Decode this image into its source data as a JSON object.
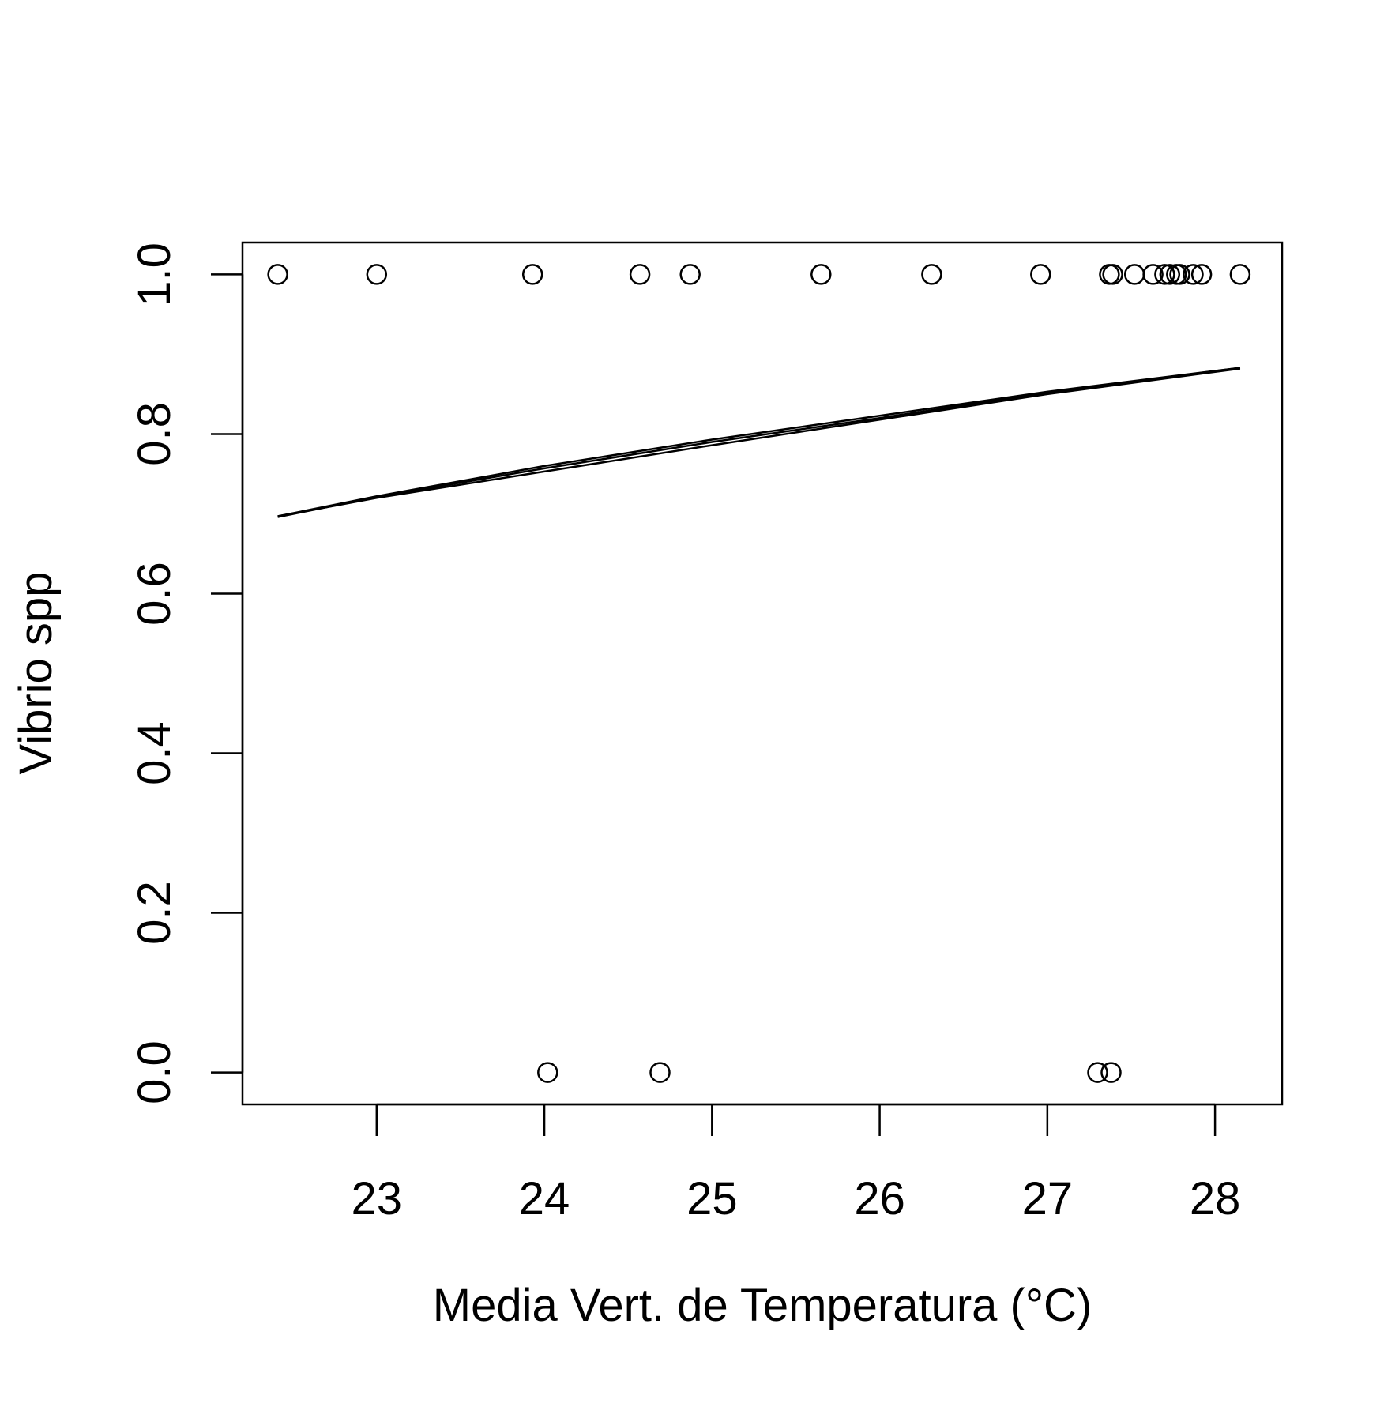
{
  "chart_data": {
    "type": "scatter",
    "title": "",
    "xlabel": "Media Vert. de Temperatura (°C)",
    "ylabel": "Vibrio spp",
    "xlim": [
      22.2,
      28.4
    ],
    "ylim": [
      -0.04,
      1.04
    ],
    "x_ticks": [
      23,
      24,
      25,
      26,
      27,
      28
    ],
    "y_ticks": [
      0.0,
      0.2,
      0.4,
      0.6,
      0.8,
      1.0
    ],
    "x_tick_labels": [
      "23",
      "24",
      "25",
      "26",
      "27",
      "28"
    ],
    "y_tick_labels": [
      "0.0",
      "0.2",
      "0.4",
      "0.6",
      "0.8",
      "1.0"
    ],
    "grid": false,
    "legend": "none",
    "colors": {
      "ink": "#000000",
      "background": "#ffffff"
    },
    "points": [
      {
        "x": 22.41,
        "y": 1
      },
      {
        "x": 23.0,
        "y": 1
      },
      {
        "x": 23.93,
        "y": 1
      },
      {
        "x": 24.57,
        "y": 1
      },
      {
        "x": 24.87,
        "y": 1
      },
      {
        "x": 25.65,
        "y": 1
      },
      {
        "x": 26.31,
        "y": 1
      },
      {
        "x": 26.96,
        "y": 1
      },
      {
        "x": 27.37,
        "y": 1
      },
      {
        "x": 27.39,
        "y": 1
      },
      {
        "x": 27.52,
        "y": 1
      },
      {
        "x": 27.63,
        "y": 1
      },
      {
        "x": 27.7,
        "y": 1
      },
      {
        "x": 27.73,
        "y": 1
      },
      {
        "x": 27.77,
        "y": 1
      },
      {
        "x": 27.79,
        "y": 1
      },
      {
        "x": 27.87,
        "y": 1
      },
      {
        "x": 27.92,
        "y": 1
      },
      {
        "x": 28.15,
        "y": 1
      },
      {
        "x": 24.02,
        "y": 0
      },
      {
        "x": 24.69,
        "y": 0
      },
      {
        "x": 27.3,
        "y": 0
      },
      {
        "x": 27.38,
        "y": 0
      }
    ],
    "fitted_lines": [
      [
        [
          22.41,
          0.697
        ],
        [
          23.0,
          0.722
        ],
        [
          24.0,
          0.76
        ],
        [
          25.0,
          0.793
        ],
        [
          26.0,
          0.823
        ],
        [
          27.0,
          0.853
        ],
        [
          28.15,
          0.883
        ]
      ],
      [
        [
          22.41,
          0.697
        ],
        [
          23.0,
          0.72
        ],
        [
          24.0,
          0.753
        ],
        [
          25.0,
          0.786
        ],
        [
          26.0,
          0.818
        ],
        [
          27.0,
          0.85
        ],
        [
          28.15,
          0.882
        ]
      ],
      [
        [
          22.41,
          0.696
        ],
        [
          23.0,
          0.721
        ],
        [
          24.0,
          0.757
        ],
        [
          25.0,
          0.79
        ],
        [
          26.0,
          0.82
        ],
        [
          27.0,
          0.852
        ],
        [
          28.15,
          0.883
        ]
      ]
    ]
  }
}
